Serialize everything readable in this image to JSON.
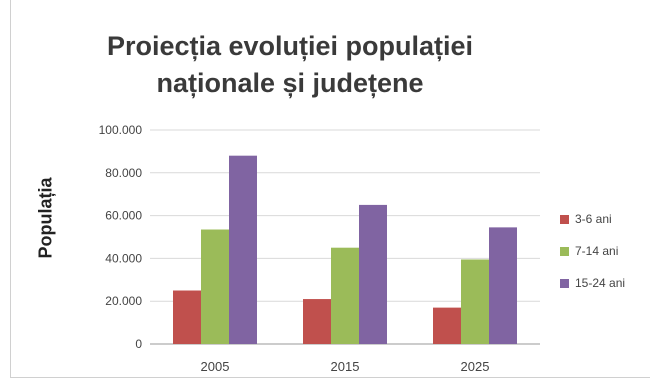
{
  "chart_data": {
    "type": "bar",
    "title_lines": [
      "Proiecția evoluției populației",
      "naționale și județene"
    ],
    "title": "Proiecția evoluției populației naționale și județene",
    "xlabel": "",
    "ylabel": "Populația",
    "categories": [
      "2005",
      "2015",
      "2025"
    ],
    "ylim": [
      0,
      100000
    ],
    "yticks": [
      0,
      20000,
      40000,
      60000,
      80000,
      100000
    ],
    "ytick_labels": [
      "0",
      "20.000",
      "40.000",
      "60.000",
      "80.000",
      "100.000"
    ],
    "grid": true,
    "legend_position": "right",
    "series": [
      {
        "name": "3-6 ani",
        "color": "#c0504d",
        "values": [
          25000,
          21000,
          17000
        ]
      },
      {
        "name": "7-14 ani",
        "color": "#9bbb59",
        "values": [
          53500,
          45000,
          39500
        ]
      },
      {
        "name": "15-24 ani",
        "color": "#8064a2",
        "values": [
          88000,
          65000,
          54500
        ]
      }
    ]
  }
}
